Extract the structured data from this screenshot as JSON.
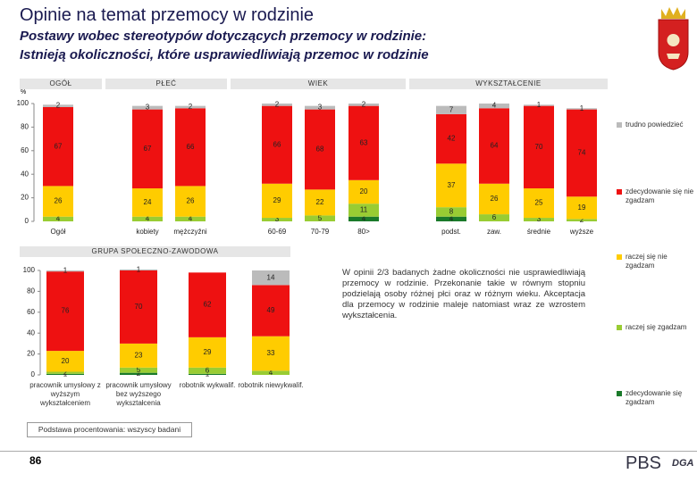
{
  "header": {
    "title": "Opinie na temat przemocy w rodzinie",
    "subtitle_lines": [
      "Postawy wobec stereotypów dotyczących przemocy w rodzinie:",
      "Istnieją okoliczności, które usprawiedliwiają przemoc w rodzinie"
    ]
  },
  "group_headers": [
    "OGÓŁ",
    "PŁEĆ",
    "WIEK",
    "WYKSZTAŁCENIE",
    "GRUPA SPOŁECZNO-ZAWODOWA"
  ],
  "y_unit": "%",
  "chart_data": [
    {
      "type": "stacked_bar",
      "categories": [
        "Ogół",
        "kobiety",
        "mężczyźni",
        "60-69",
        "70-79",
        "80>",
        "podst.",
        "zaw.",
        "średnie",
        "wyższe"
      ],
      "series": [
        {
          "name": "zdecydowanie się zgadzam",
          "color": "#1a7a2a",
          "values": [
            null,
            null,
            null,
            null,
            null,
            4,
            4,
            null,
            null,
            null
          ]
        },
        {
          "name": "raczej się zgadzam",
          "color": "#99cc33",
          "values": [
            4,
            4,
            4,
            3,
            5,
            11,
            8,
            6,
            3,
            2
          ]
        },
        {
          "name": "raczej się nie zgadzam",
          "color": "#ffcc00",
          "values": [
            26,
            24,
            26,
            29,
            22,
            20,
            37,
            26,
            25,
            19
          ]
        },
        {
          "name": "zdecydowanie się nie zgadzam",
          "color": "#ee1111",
          "values": [
            67,
            67,
            66,
            66,
            68,
            63,
            42,
            64,
            70,
            74
          ]
        },
        {
          "name": "trudno powiedzieć",
          "color": "#bbbbbb",
          "values": [
            2,
            3,
            2,
            2,
            3,
            2,
            7,
            4,
            1,
            1
          ]
        }
      ],
      "ylim": [
        0,
        100
      ],
      "yticks": [
        0,
        20,
        40,
        60,
        80,
        100
      ]
    },
    {
      "type": "stacked_bar",
      "categories": [
        "pracownik umysłowy z wyższym wykształceniem",
        "pracownik umysłowy bez wyższego wykształcenia",
        "robotnik wykwalif.",
        "robotnik niewykwalif."
      ],
      "series": [
        {
          "color": "#1a7a2a",
          "values": [
            1,
            2,
            1,
            null
          ]
        },
        {
          "color": "#99cc33",
          "values": [
            2,
            5,
            6,
            4
          ]
        },
        {
          "color": "#ffcc00",
          "values": [
            20,
            23,
            29,
            33
          ]
        },
        {
          "color": "#ee1111",
          "values": [
            76,
            70,
            62,
            49
          ]
        },
        {
          "color": "#bbbbbb",
          "values": [
            1,
            1,
            null,
            14
          ]
        }
      ],
      "ylim": [
        0,
        100
      ],
      "yticks": [
        0,
        20,
        40,
        60,
        80,
        100
      ]
    }
  ],
  "note": "W opinii 2/3 badanych żadne okoliczności nie usprawiedliwiają przemocy w rodzinie. Przekonanie takie w równym stopniu podzielają osoby różnej płci oraz w różnym wieku. Akceptacja dla przemocy w rodzinie maleje natomiast wraz ze wzrostem wykształcenia.",
  "footer": {
    "base": "Podstawa procentowania: wszyscy badani",
    "page": "86",
    "logo": "PBS",
    "logo2": "DGA"
  }
}
